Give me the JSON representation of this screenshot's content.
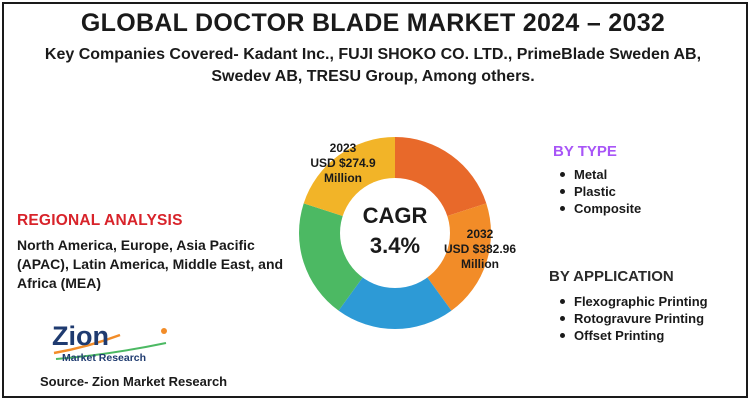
{
  "header": {
    "title": "GLOBAL DOCTOR BLADE MARKET 2024 – 2032",
    "subtitle": "Key Companies Covered- Kadant Inc., FUJI SHOKO CO. LTD., PrimeBlade Sweden AB, Swedev AB, TRESU Group, Among others."
  },
  "regional": {
    "heading": "REGIONAL ANALYSIS",
    "text": "North America, Europe, Asia Pacific (APAC), Latin America, Middle East, and Africa (MEA)"
  },
  "by_type": {
    "heading": "BY TYPE",
    "items": [
      "Metal",
      "Plastic",
      "Composite"
    ]
  },
  "by_application": {
    "heading": "BY APPLICATION",
    "items": [
      "Flexographic Printing",
      "Rotogravure Printing",
      "Offset Printing"
    ]
  },
  "callouts": {
    "y2023": {
      "year": "2023",
      "value": "USD $274.9",
      "unit": "Million"
    },
    "y2032": {
      "year": "2032",
      "value": "USD $382.96",
      "unit": "Million"
    }
  },
  "logo": {
    "word": "Zion",
    "sub": "Market Research"
  },
  "source": "Source- Zion Market Research",
  "colors": {
    "title": "#1a1a1a",
    "regional_heading": "#d8232a",
    "type_heading": "#a855f7",
    "logo": "#1f3b70"
  },
  "chart_data": {
    "type": "pie",
    "style": "donut",
    "center_label": "CAGR",
    "center_value": "3.4%",
    "segments": [
      {
        "color": "#e8692a",
        "share": 0.2
      },
      {
        "color": "#f28c28",
        "share": 0.2
      },
      {
        "color": "#2d9ad6",
        "share": 0.2
      },
      {
        "color": "#4cb963",
        "share": 0.2
      },
      {
        "color": "#f2b428",
        "share": 0.2
      }
    ],
    "annotations": [
      {
        "year": "2023",
        "value": "USD $274.9 Million"
      },
      {
        "year": "2032",
        "value": "USD $382.96 Million"
      }
    ]
  }
}
